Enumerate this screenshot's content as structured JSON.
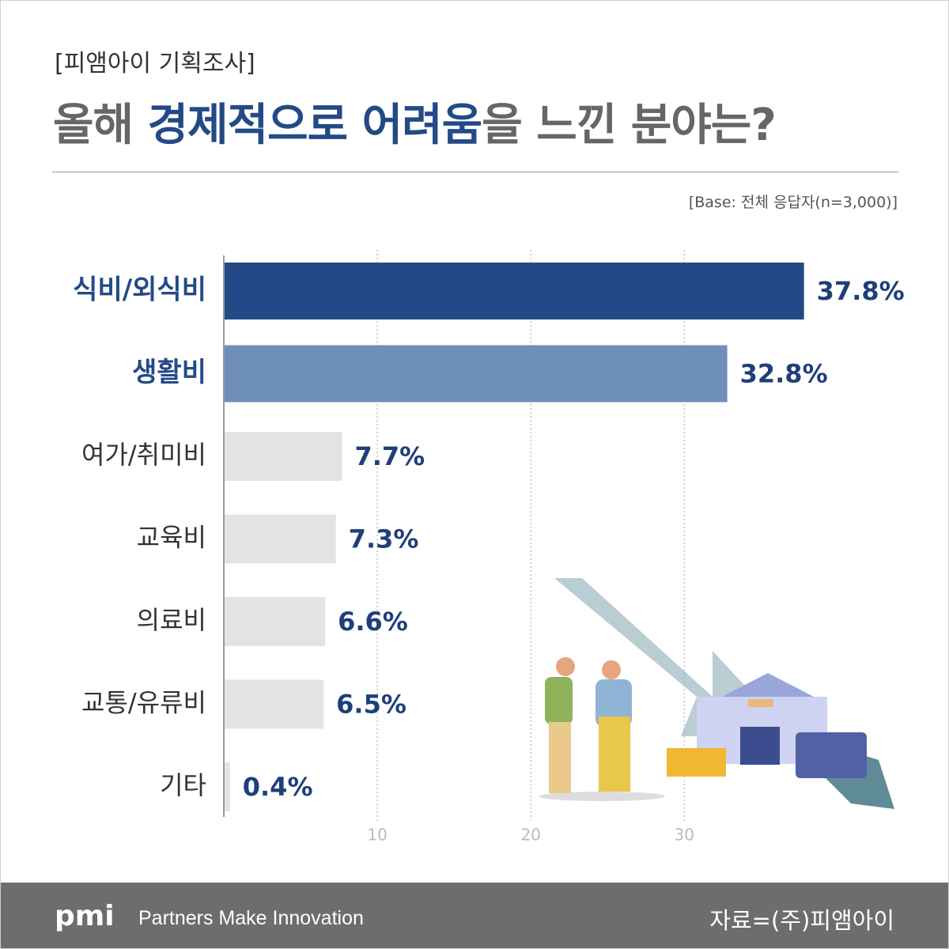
{
  "chart_data": {
    "type": "barh",
    "subtitle": "[피앰아이 기획조사]",
    "title": [
      "올해 ",
      "경제적으로 어려움",
      "을 느낀 분야는?"
    ],
    "note": "[Base: 전체 응답자(n=3,000)]",
    "categories": [
      "식비/외식비",
      "생활비",
      "여가/취미비",
      "교육비",
      "의료비",
      "교통/유류비",
      "기타"
    ],
    "values": [
      37.8,
      32.8,
      7.7,
      7.3,
      6.6,
      6.5,
      0.4
    ],
    "value_labels": [
      "37.8%",
      "32.8%",
      "7.7%",
      "7.3%",
      "6.6%",
      "6.5%",
      "0.4%"
    ],
    "colors": [
      "#234a87",
      "#6f8fbb",
      "#e3e3e3",
      "#e3e3e3",
      "#e3e3e3",
      "#e3e3e3",
      "#e3e3e3"
    ],
    "label_colors": [
      "#234a87",
      "#234a87",
      "#333333",
      "#333333",
      "#333333",
      "#333333",
      "#333333"
    ],
    "xlim": [
      0,
      44
    ],
    "xticks": [
      10,
      20,
      30
    ],
    "grid": true
  },
  "footer": {
    "logo": "pmi",
    "slogan": "Partners Make Innovation",
    "source": "자료=(주)피앰아이"
  }
}
